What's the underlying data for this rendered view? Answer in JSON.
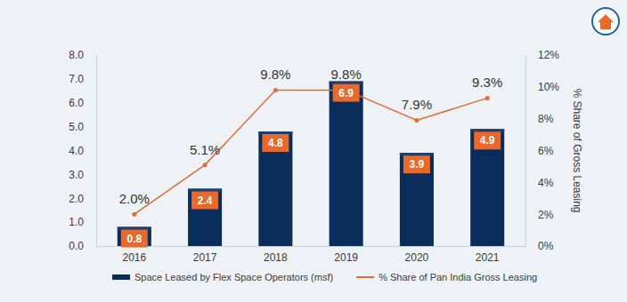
{
  "chart_data": {
    "type": "bar",
    "categories": [
      "2016",
      "2017",
      "2018",
      "2019",
      "2020",
      "2021"
    ],
    "series": [
      {
        "name": "Space Leased by Flex Space Operators (msf)",
        "type": "bar",
        "color": "#0b2d5b",
        "values": [
          0.8,
          2.4,
          4.8,
          6.9,
          3.9,
          4.9
        ]
      },
      {
        "name": "% Share of Pan India Gross Leasing",
        "type": "line",
        "color": "#e8692b",
        "axis": "y2",
        "marker": "circle",
        "values": [
          2.0,
          5.1,
          9.8,
          9.8,
          7.9,
          9.3
        ],
        "value_labels": [
          "2.0%",
          "5.1%",
          "9.8%",
          "9.8%",
          "7.9%",
          "9.3%"
        ]
      }
    ],
    "ylim": [
      0,
      8
    ],
    "yticks": [
      {
        "value": 0,
        "label": "0.0"
      },
      {
        "value": 1,
        "label": "1.0"
      },
      {
        "value": 2,
        "label": "2.0"
      },
      {
        "value": 3,
        "label": "3.0"
      },
      {
        "value": 4,
        "label": "4.0"
      },
      {
        "value": 5,
        "label": "5.0"
      },
      {
        "value": 6,
        "label": "6.0"
      },
      {
        "value": 7,
        "label": "7.0"
      },
      {
        "value": 8,
        "label": "8.0"
      }
    ],
    "y2lim": [
      0,
      12
    ],
    "y2ticks": [
      {
        "value": 0,
        "label": "0%"
      },
      {
        "value": 2,
        "label": "2%"
      },
      {
        "value": 4,
        "label": "4%"
      },
      {
        "value": 6,
        "label": "6%"
      },
      {
        "value": 8,
        "label": "8%"
      },
      {
        "value": 10,
        "label": "10%"
      },
      {
        "value": 12,
        "label": "12%"
      }
    ],
    "y2_label": "% Share of Gross Leasing",
    "grid": false,
    "data_labels": true,
    "legend": "bottom"
  }
}
